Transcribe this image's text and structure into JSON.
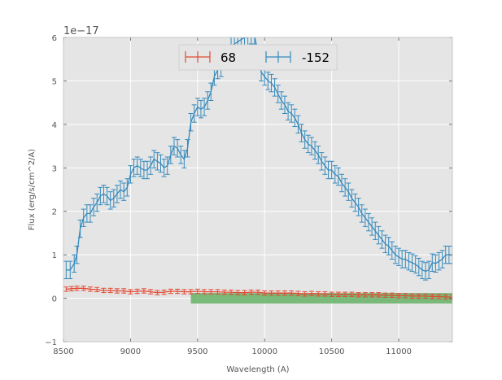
{
  "chart_data": {
    "type": "line",
    "title": "",
    "xlabel": "Wavelength (A)",
    "ylabel": "Flux (erg/s/cm^2/A)",
    "y_scale_label": "1e−17",
    "xlim": [
      8500,
      11400
    ],
    "ylim": [
      -1,
      6
    ],
    "x_ticks": [
      8500,
      9000,
      9500,
      10000,
      10500,
      11000
    ],
    "y_ticks": [
      -1,
      0,
      1,
      2,
      3,
      4,
      5,
      6
    ],
    "grid": true,
    "legend": "top-center",
    "shaded_band": {
      "x": [
        9450,
        11400
      ],
      "y": [
        -0.12,
        0.12
      ],
      "color": "#66b266"
    },
    "series": [
      {
        "name": "68",
        "color": "#e24a33",
        "x": [
          8520,
          8560,
          8600,
          8650,
          8700,
          8750,
          8800,
          8850,
          8900,
          8950,
          9000,
          9050,
          9100,
          9150,
          9200,
          9250,
          9300,
          9350,
          9400,
          9450,
          9500,
          9550,
          9600,
          9650,
          9700,
          9750,
          9800,
          9850,
          9900,
          9950,
          10000,
          10050,
          10100,
          10150,
          10200,
          10250,
          10300,
          10350,
          10400,
          10450,
          10500,
          10550,
          10600,
          10650,
          10700,
          10750,
          10800,
          10850,
          10900,
          10950,
          11000,
          11050,
          11100,
          11150,
          11200,
          11250,
          11300,
          11350,
          11400
        ],
        "values": [
          0.21,
          0.22,
          0.23,
          0.23,
          0.21,
          0.2,
          0.18,
          0.18,
          0.17,
          0.17,
          0.15,
          0.16,
          0.17,
          0.15,
          0.13,
          0.14,
          0.16,
          0.16,
          0.15,
          0.15,
          0.16,
          0.15,
          0.15,
          0.15,
          0.14,
          0.14,
          0.13,
          0.13,
          0.14,
          0.14,
          0.12,
          0.12,
          0.12,
          0.12,
          0.12,
          0.11,
          0.1,
          0.11,
          0.1,
          0.1,
          0.09,
          0.09,
          0.09,
          0.09,
          0.08,
          0.08,
          0.08,
          0.08,
          0.07,
          0.07,
          0.06,
          0.06,
          0.05,
          0.05,
          0.05,
          0.04,
          0.04,
          0.03,
          0.03
        ],
        "errors": 0.05
      },
      {
        "name": "-152",
        "color": "#348abd",
        "x": [
          8520,
          8550,
          8580,
          8600,
          8625,
          8650,
          8675,
          8700,
          8725,
          8750,
          8775,
          8800,
          8825,
          8850,
          8875,
          8900,
          8925,
          8950,
          8975,
          9000,
          9025,
          9050,
          9075,
          9100,
          9125,
          9150,
          9175,
          9200,
          9225,
          9250,
          9275,
          9300,
          9325,
          9350,
          9375,
          9400,
          9425,
          9450,
          9475,
          9500,
          9525,
          9550,
          9575,
          9600,
          9625,
          9650,
          9675,
          9700,
          9725,
          9750,
          9775,
          9800,
          9825,
          9850,
          9875,
          9900,
          9925,
          9950,
          9975,
          10000,
          10025,
          10050,
          10075,
          10100,
          10125,
          10150,
          10175,
          10200,
          10225,
          10250,
          10275,
          10300,
          10325,
          10350,
          10375,
          10400,
          10425,
          10450,
          10475,
          10500,
          10525,
          10550,
          10575,
          10600,
          10625,
          10650,
          10675,
          10700,
          10725,
          10750,
          10775,
          10800,
          10825,
          10850,
          10875,
          10900,
          10925,
          10950,
          10975,
          11000,
          11025,
          11050,
          11075,
          11100,
          11125,
          11150,
          11175,
          11200,
          11225,
          11250,
          11275,
          11300,
          11325,
          11350,
          11375,
          11400
        ],
        "values": [
          0.65,
          0.65,
          0.8,
          1.0,
          1.6,
          1.85,
          1.95,
          1.95,
          2.1,
          2.2,
          2.35,
          2.4,
          2.35,
          2.25,
          2.3,
          2.4,
          2.5,
          2.45,
          2.55,
          2.85,
          3.0,
          3.05,
          3.0,
          2.95,
          2.95,
          3.05,
          3.2,
          3.15,
          3.1,
          3.0,
          3.05,
          3.3,
          3.5,
          3.45,
          3.3,
          3.2,
          3.45,
          4.05,
          4.25,
          4.4,
          4.35,
          4.4,
          4.55,
          4.75,
          5.1,
          5.25,
          5.3,
          5.5,
          5.6,
          5.8,
          5.85,
          5.9,
          5.95,
          6.0,
          6.0,
          6.05,
          6.05,
          5.6,
          5.2,
          5.1,
          5.0,
          4.95,
          4.85,
          4.7,
          4.55,
          4.45,
          4.3,
          4.25,
          4.15,
          4.0,
          3.8,
          3.65,
          3.55,
          3.5,
          3.4,
          3.3,
          3.15,
          3.05,
          2.95,
          2.95,
          2.85,
          2.8,
          2.65,
          2.55,
          2.45,
          2.3,
          2.2,
          2.1,
          1.95,
          1.85,
          1.75,
          1.65,
          1.55,
          1.45,
          1.35,
          1.25,
          1.2,
          1.1,
          1.0,
          0.95,
          0.9,
          0.9,
          0.85,
          0.82,
          0.78,
          0.72,
          0.65,
          0.62,
          0.65,
          0.82,
          0.8,
          0.85,
          0.9,
          1.0,
          1.0,
          1.0
        ],
        "errors": 0.2
      }
    ]
  }
}
